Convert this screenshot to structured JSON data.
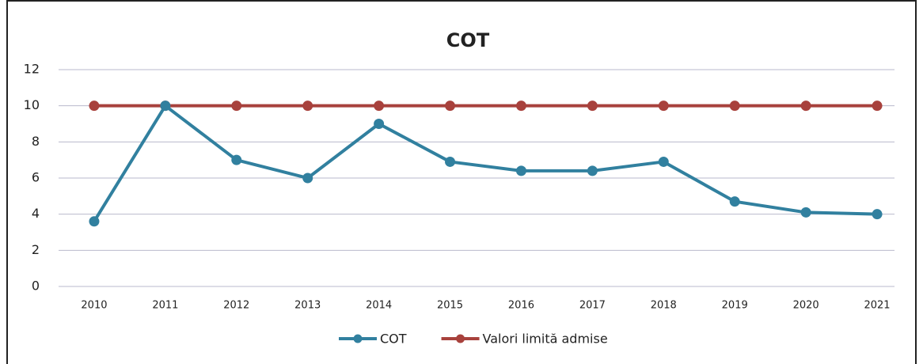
{
  "chart_data": {
    "type": "line",
    "title": "COT",
    "categories": [
      "2010",
      "2011",
      "2012",
      "2013",
      "2014",
      "2015",
      "2016",
      "2017",
      "2018",
      "2019",
      "2020",
      "2021"
    ],
    "series": [
      {
        "name": "COT",
        "color": "#31809f",
        "values": [
          3.6,
          10,
          7,
          6,
          9,
          6.9,
          6.4,
          6.4,
          6.9,
          4.7,
          4.1,
          4.0
        ]
      },
      {
        "name": "Valori limită admise",
        "color": "#a8413c",
        "values": [
          10,
          10,
          10,
          10,
          10,
          10,
          10,
          10,
          10,
          10,
          10,
          10
        ]
      }
    ],
    "ylim": [
      0,
      12
    ],
    "yticks": [
      0,
      2,
      4,
      6,
      8,
      10,
      12
    ],
    "grid": true,
    "legend": "bottom"
  }
}
